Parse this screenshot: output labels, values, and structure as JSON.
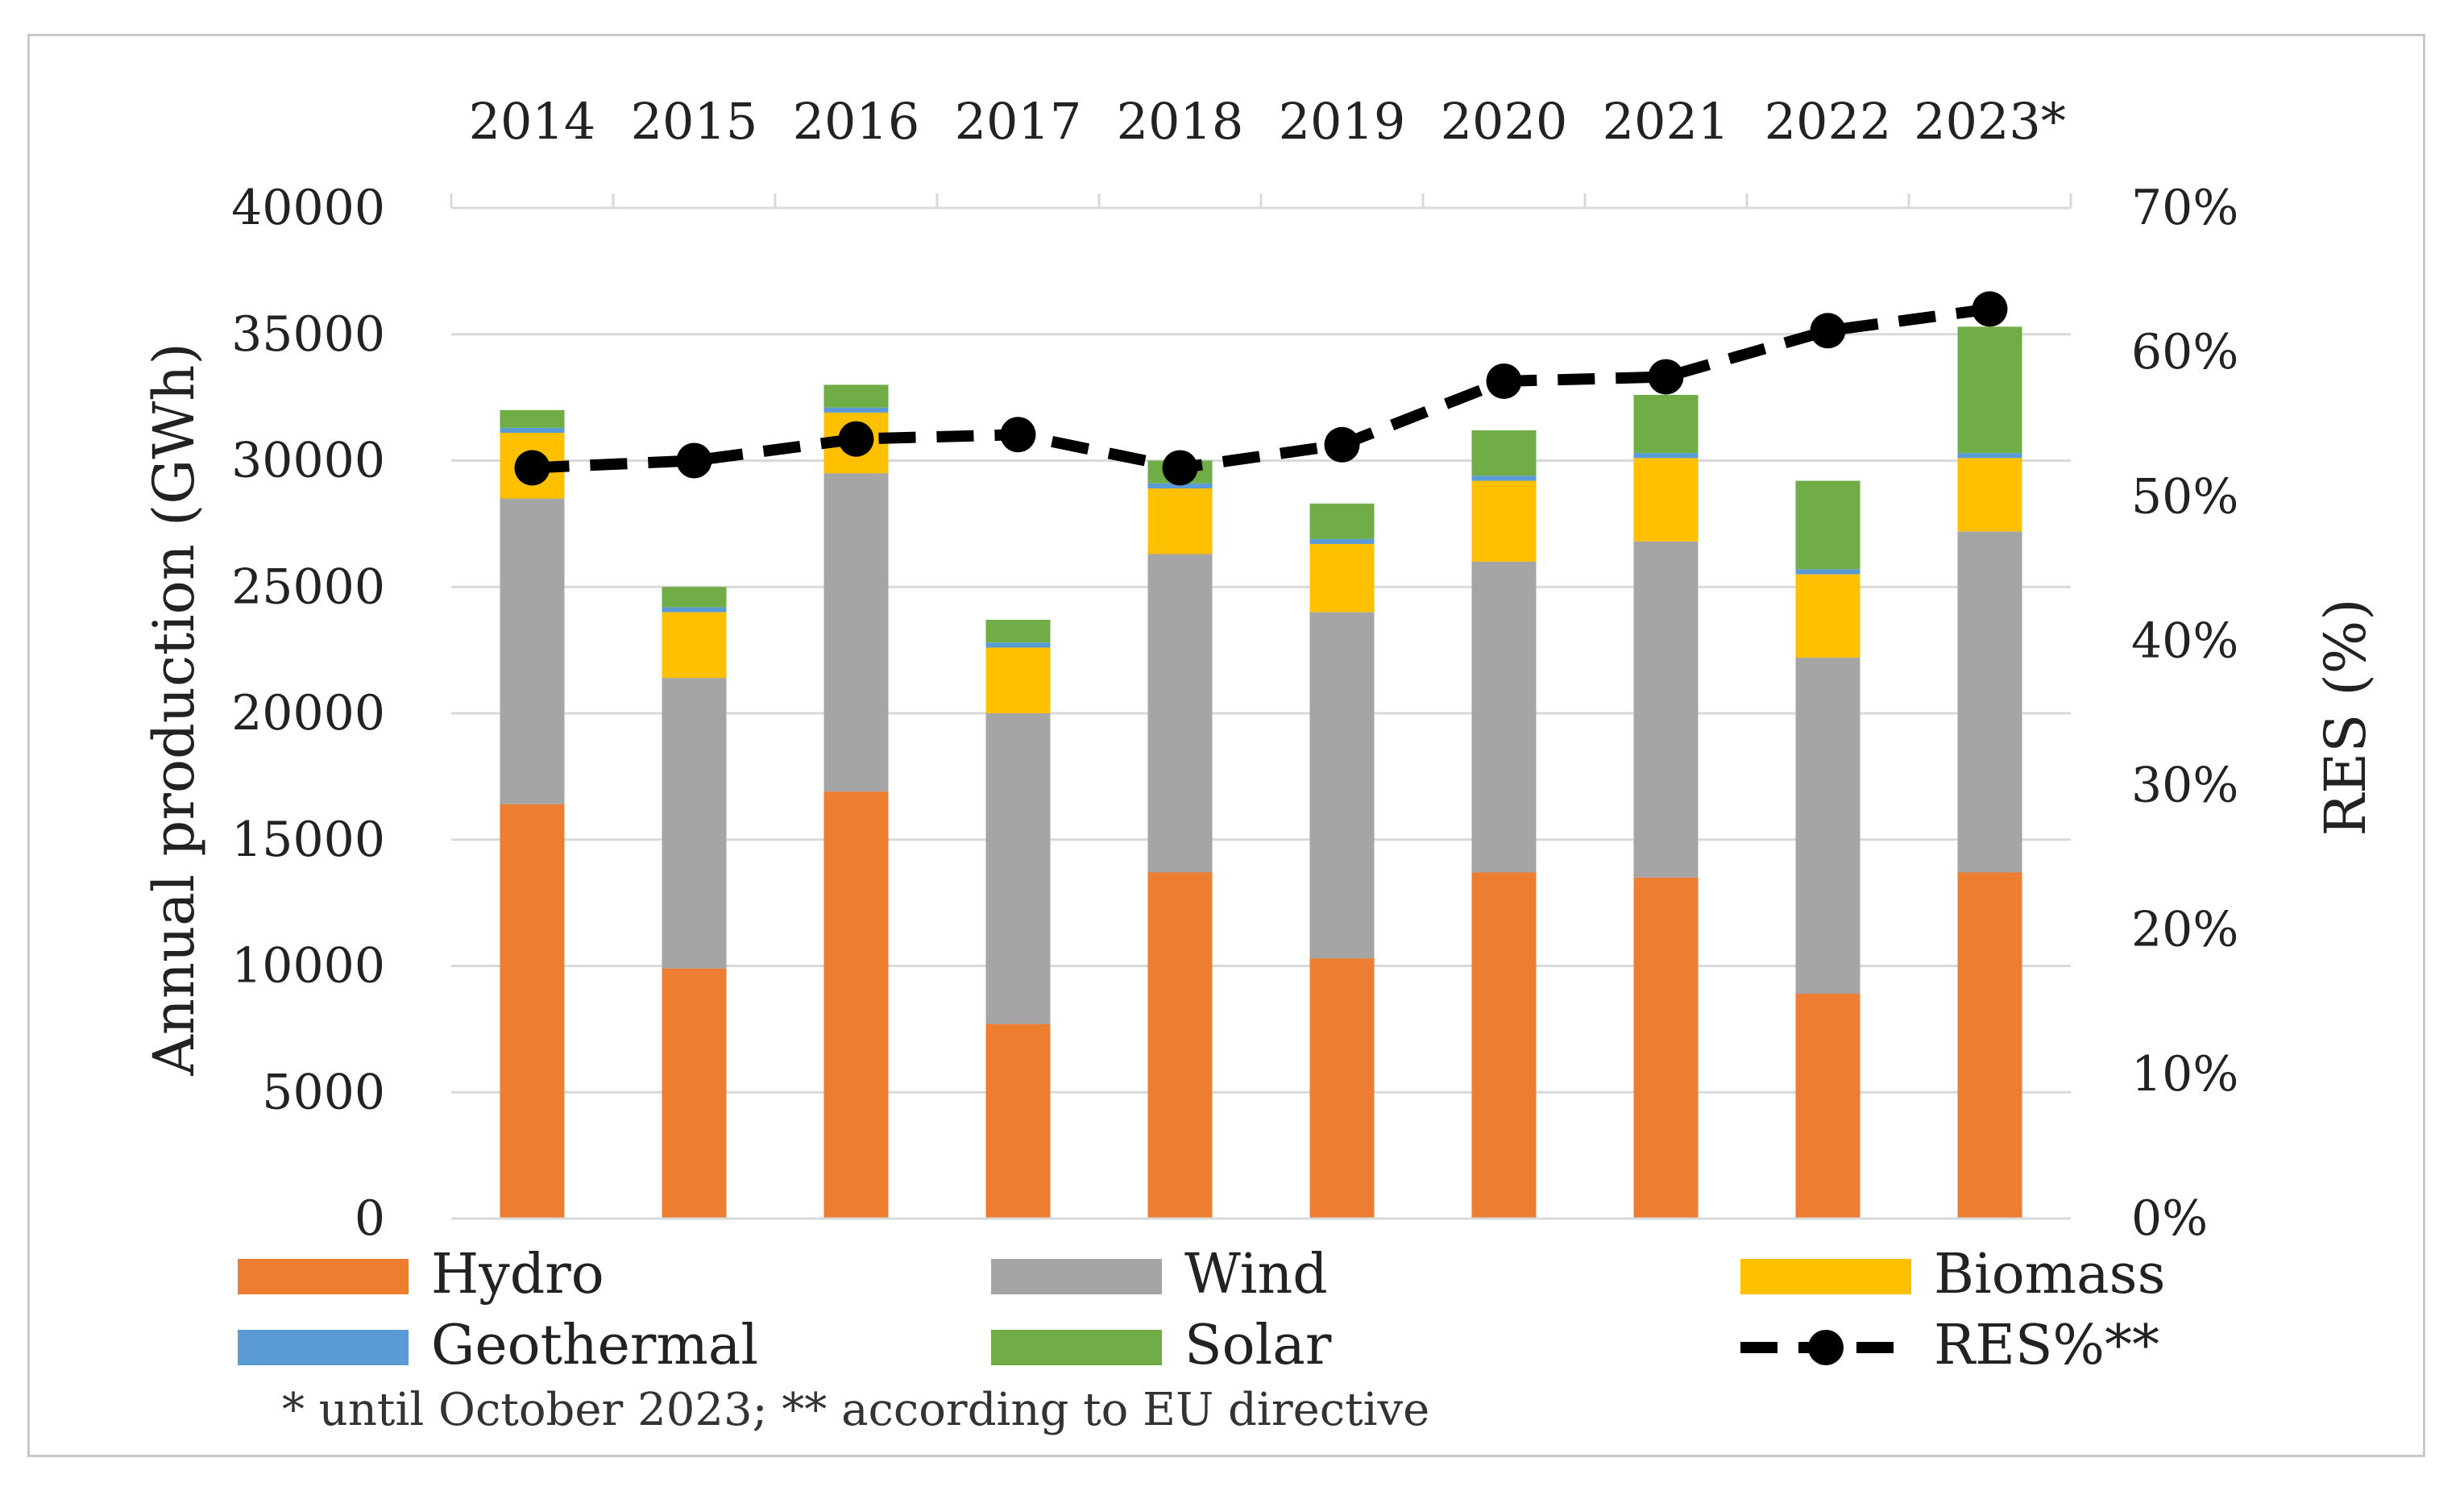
{
  "chart_data": {
    "type": "bar",
    "stacked": true,
    "categories": [
      "2014",
      "2015",
      "2016",
      "2017",
      "2018",
      "2019",
      "2020",
      "2021",
      "2022",
      "2023*"
    ],
    "series": [
      {
        "name": "Hydro",
        "color": "#ED7D31",
        "values": [
          16400,
          9900,
          16900,
          7700,
          13700,
          10300,
          13700,
          13500,
          8900,
          13700
        ]
      },
      {
        "name": "Wind",
        "color": "#A5A5A5",
        "values": [
          12100,
          11500,
          12600,
          12300,
          12600,
          13700,
          12300,
          13300,
          13300,
          13500
        ]
      },
      {
        "name": "Biomass",
        "color": "#FFC000",
        "values": [
          2600,
          2600,
          2400,
          2600,
          2600,
          2700,
          3200,
          3300,
          3300,
          2900
        ]
      },
      {
        "name": "Geothermal",
        "color": "#5B9BD5",
        "values": [
          200,
          200,
          200,
          200,
          200,
          200,
          200,
          200,
          200,
          200
        ]
      },
      {
        "name": "Solar",
        "color": "#70AD47",
        "values": [
          700,
          800,
          900,
          900,
          900,
          1400,
          1800,
          2300,
          3500,
          5000
        ]
      }
    ],
    "line": {
      "name": "RES%**",
      "color": "#000000",
      "axis": "right",
      "values": [
        52,
        52.5,
        54,
        54.3,
        52,
        53.6,
        58,
        58.3,
        61.5,
        63
      ]
    },
    "ylabel": "Annual production (GWh)",
    "y2label": "RES (%)",
    "ylim": [
      0,
      40000
    ],
    "y2lim": [
      0,
      70
    ],
    "yticks": [
      "0",
      "5000",
      "10000",
      "15000",
      "20000",
      "25000",
      "30000",
      "35000",
      "40000"
    ],
    "y2ticks": [
      "0%",
      "10%",
      "20%",
      "30%",
      "40%",
      "50%",
      "60%",
      "70%"
    ],
    "x_axis_position": "top",
    "grid": true,
    "legend": [
      "Hydro",
      "Wind",
      "Biomass",
      "Geothermal",
      "Solar",
      "RES%**"
    ],
    "legend_position": "bottom",
    "footnote": "* until October 2023; ** according to EU directive"
  }
}
